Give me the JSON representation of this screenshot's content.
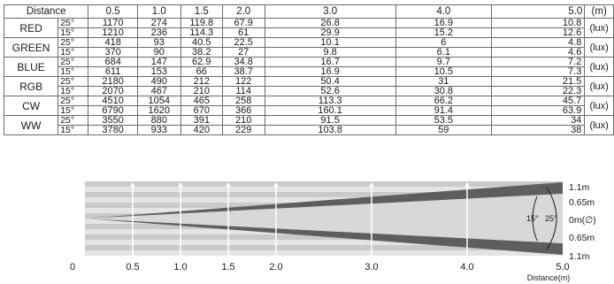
{
  "table": {
    "header": {
      "distance_label": "Distance",
      "distances": [
        "0.5",
        "1.0",
        "1.5",
        "2.0",
        "3.0",
        "4.0",
        "5.0"
      ],
      "unit": "(m)"
    },
    "unit_label": "(lux)",
    "rows": [
      {
        "name": "RED",
        "lines": [
          {
            "angle": "25°",
            "values": [
              "1170",
              "274",
              "119.8",
              "67.9",
              "26.8",
              "16.9",
              "10.8"
            ]
          },
          {
            "angle": "15°",
            "values": [
              "1210",
              "236",
              "114.3",
              "61",
              "29.9",
              "15.2",
              "12.6"
            ]
          }
        ]
      },
      {
        "name": "GREEN",
        "lines": [
          {
            "angle": "25°",
            "values": [
              "418",
              "93",
              "40.5",
              "22.5",
              "10.1",
              "6",
              "4.8"
            ]
          },
          {
            "angle": "15°",
            "values": [
              "370",
              "90",
              "38.2",
              "27",
              "9.8",
              "6.1",
              "4.6"
            ]
          }
        ]
      },
      {
        "name": "BLUE",
        "lines": [
          {
            "angle": "25°",
            "values": [
              "684",
              "147",
              "62.9",
              "34.8",
              "16.7",
              "9.7",
              "7.2"
            ]
          },
          {
            "angle": "15°",
            "values": [
              "611",
              "153",
              "66",
              "38.7",
              "16.9",
              "10.5",
              "7.3"
            ]
          }
        ]
      },
      {
        "name": "RGB",
        "lines": [
          {
            "angle": "25°",
            "values": [
              "2180",
              "490",
              "212",
              "122",
              "50.4",
              "31",
              "21.5"
            ]
          },
          {
            "angle": "15°",
            "values": [
              "2070",
              "467",
              "210",
              "114",
              "52.6",
              "30.8",
              "22.3"
            ]
          }
        ]
      },
      {
        "name": "CW",
        "lines": [
          {
            "angle": "25°",
            "values": [
              "4510",
              "1054",
              "465",
              "258",
              "113.3",
              "66.2",
              "45.7"
            ]
          },
          {
            "angle": "15°",
            "values": [
              "6790",
              "1620",
              "670",
              "366",
              "160.1",
              "91.4",
              "63.9"
            ]
          }
        ]
      },
      {
        "name": "WW",
        "lines": [
          {
            "angle": "25°",
            "values": [
              "3550",
              "880",
              "391",
              "210",
              "91.5",
              "53.5",
              "34"
            ]
          },
          {
            "angle": "15°",
            "values": [
              "3780",
              "933",
              "420",
              "229",
              "103.8",
              "59",
              "38"
            ]
          }
        ]
      }
    ]
  },
  "diagram": {
    "x_ticks": [
      "0",
      "0.5",
      "1.0",
      "1.5",
      "2.0",
      "3.0",
      "4.0",
      "5.0"
    ],
    "x_tick_values": [
      0,
      0.5,
      1.0,
      1.5,
      2.0,
      3.0,
      4.0,
      5.0
    ],
    "x_axis_label": "Distance(m)",
    "right_labels": [
      "1.1m",
      "0.65m",
      "0m(∅)",
      "0.65m",
      "1.1m"
    ],
    "angle_inner": "15°",
    "angle_outer": "25°",
    "colors": {
      "background": "#c9c9c9",
      "stripe": "#e4e4e4",
      "beam_outer": "#5e5e5e",
      "beam_inner": "#d8d8d8",
      "markers": "#ffffff"
    }
  }
}
